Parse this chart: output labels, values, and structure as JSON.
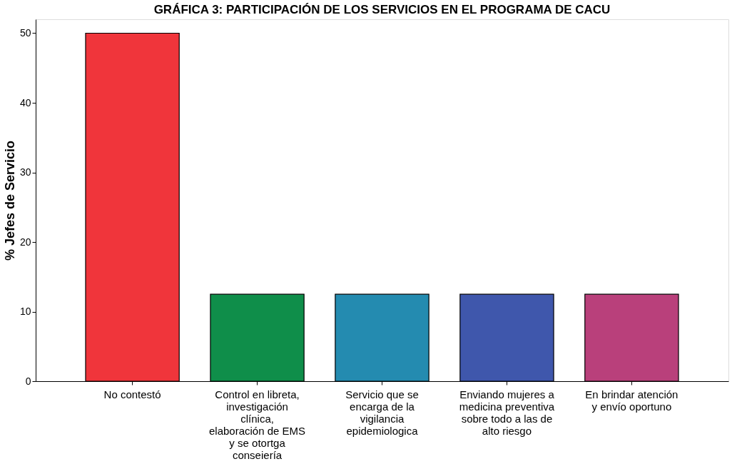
{
  "chart_data": {
    "type": "bar",
    "title": "GRÁFICA 3: PARTICIPACIÓN DE LOS SERVICIOS EN EL PROGRAMA DE CACU",
    "ylabel": "% Jefes de Servicio",
    "categories": [
      "No contestó",
      "Control en libreta, investigación clínica, elaboración de EMS y se otortga conseiería",
      "Servicio que se encarga de la vigilancia epidemiologica",
      "Enviando mujeres a medicina preventiva sobre todo a las de alto riesgo",
      "En brindar atención y envío oportuno"
    ],
    "values": [
      50,
      12.5,
      12.5,
      12.5,
      12.5
    ],
    "colors": [
      "#f0353b",
      "#0f8e4a",
      "#248bb0",
      "#3f57ac",
      "#b9407b"
    ],
    "ylim": [
      0,
      52
    ],
    "yticks": [
      0,
      10,
      20,
      30,
      40,
      50
    ],
    "grid": false
  }
}
